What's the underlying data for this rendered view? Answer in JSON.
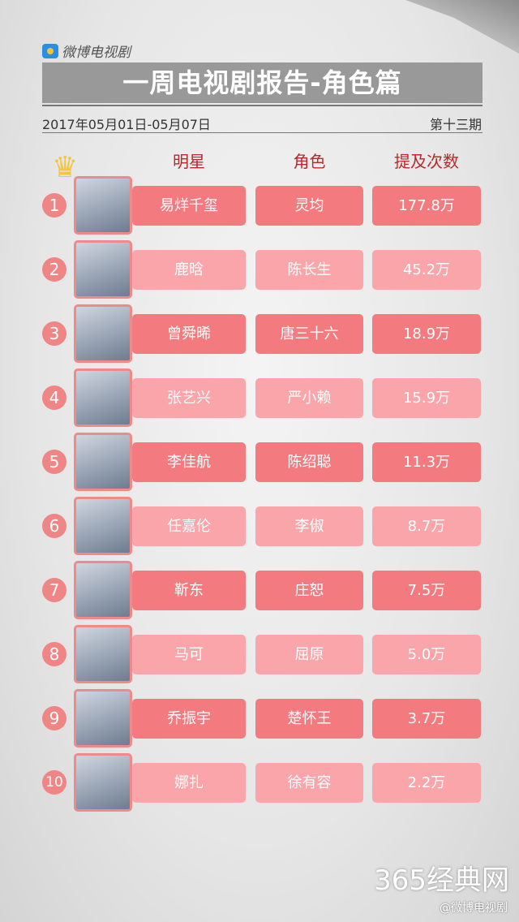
{
  "brand": "微博电视剧",
  "title": "一周电视剧报告-角色篇",
  "date_range": "2017年05月01日-05月07日",
  "issue": "第十三期",
  "headers": {
    "star": "明星",
    "role": "角色",
    "mentions": "提及次数"
  },
  "rows": [
    {
      "rank": "1",
      "star": "易烊千玺",
      "role": "灵均",
      "mentions": "177.8万"
    },
    {
      "rank": "2",
      "star": "鹿晗",
      "role": "陈长生",
      "mentions": "45.2万"
    },
    {
      "rank": "3",
      "star": "曾舜晞",
      "role": "唐三十六",
      "mentions": "18.9万"
    },
    {
      "rank": "4",
      "star": "张艺兴",
      "role": "严小赖",
      "mentions": "15.9万"
    },
    {
      "rank": "5",
      "star": "李佳航",
      "role": "陈绍聪",
      "mentions": "11.3万"
    },
    {
      "rank": "6",
      "star": "任嘉伦",
      "role": "李俶",
      "mentions": "8.7万"
    },
    {
      "rank": "7",
      "star": "靳东",
      "role": "庄恕",
      "mentions": "7.5万"
    },
    {
      "rank": "8",
      "star": "马可",
      "role": "屈原",
      "mentions": "5.0万"
    },
    {
      "rank": "9",
      "star": "乔振宇",
      "role": "楚怀王",
      "mentions": "3.7万"
    },
    {
      "rank": "10",
      "star": "娜扎",
      "role": "徐有容",
      "mentions": "2.2万"
    }
  ],
  "watermark": "365经典网",
  "watermark_sub": "@微博电视剧",
  "colors": {
    "odd_pill": "#f37a7f",
    "even_pill": "#f9a5aa",
    "header_text": "#b8282c",
    "banner": "#999999"
  }
}
